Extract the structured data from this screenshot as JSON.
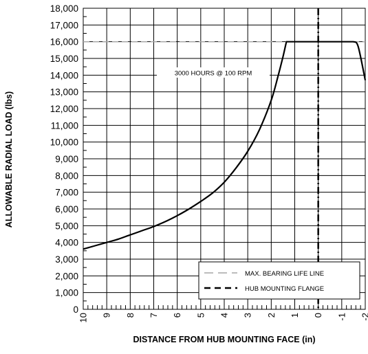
{
  "chart_data": {
    "type": "line",
    "xlabel": "DISTANCE FROM HUB MOUNTING FACE (in)",
    "ylabel": "ALLOWABLE RADIAL LOAD (lbs)",
    "xlim": [
      10,
      -2
    ],
    "ylim": [
      0,
      18000
    ],
    "x_reversed": true,
    "x_ticks": [
      10,
      9,
      8,
      7,
      6,
      5,
      4,
      3,
      2,
      1,
      0,
      -1,
      -2
    ],
    "x_tick_labels": [
      "10",
      "9",
      "8",
      "7",
      "6",
      "5",
      "4",
      "3",
      "2",
      "1",
      "0",
      "-1",
      "-2"
    ],
    "y_ticks": [
      0,
      1000,
      2000,
      3000,
      4000,
      5000,
      6000,
      7000,
      8000,
      9000,
      10000,
      11000,
      12000,
      13000,
      14000,
      15000,
      16000,
      17000,
      18000
    ],
    "y_tick_labels": [
      "0",
      "1,000",
      "2,000",
      "3,000",
      "4,000",
      "5,000",
      "6,000",
      "7,000",
      "8,000",
      "9,000",
      "10,000",
      "11,000",
      "12,000",
      "13,000",
      "14,000",
      "15,000",
      "16,000",
      "17,000",
      "18,000"
    ],
    "grid": true,
    "annotation": "3000 HOURS @ 100 RPM",
    "series": [
      {
        "name": "3000 HOURS @ 100 RPM",
        "color": "#000000",
        "x": [
          10,
          9.5,
          9,
          8.5,
          8,
          7.5,
          7,
          6.5,
          6,
          5.5,
          5,
          4.5,
          4,
          3.5,
          3,
          2.5,
          2,
          1.7,
          1.5,
          1.35,
          1.3,
          1,
          0.5,
          0,
          -0.5,
          -1,
          -1.3,
          -1.5,
          -1.7,
          -2
        ],
        "y": [
          3600,
          3800,
          4000,
          4200,
          4450,
          4700,
          4950,
          5250,
          5600,
          6000,
          6450,
          6950,
          7600,
          8450,
          9450,
          10750,
          12500,
          14000,
          15100,
          16000,
          16000,
          16000,
          16000,
          16000,
          16000,
          16000,
          16000,
          16000,
          15700,
          13700
        ]
      }
    ],
    "legend": {
      "placement": "bottom-right",
      "entries": [
        {
          "label": "MAX. BEARING LIFE LINE",
          "style": "dash",
          "color": "#a6a6a6"
        },
        {
          "label": "HUB MOUNTING FLANGE",
          "style": "dashdot",
          "color": "#000000"
        }
      ]
    },
    "max_bearing_life_line_y": 16000,
    "hub_mounting_flange_x": 0
  }
}
